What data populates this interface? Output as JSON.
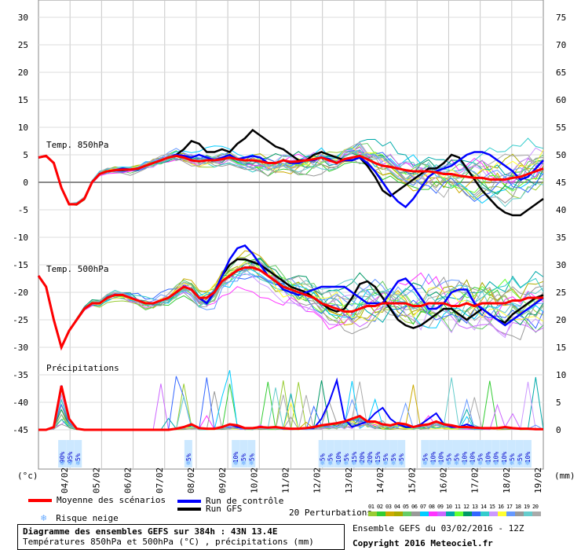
{
  "chart_data": {
    "type": "line",
    "left_axis": {
      "ticks": [
        30,
        25,
        20,
        15,
        10,
        5,
        0,
        -5,
        -10,
        -15,
        -20,
        -25,
        -30,
        -35,
        -40,
        -45
      ],
      "unit": "(°c)"
    },
    "right_axis": {
      "ticks": [
        75,
        70,
        65,
        60,
        55,
        50,
        45,
        40,
        35,
        30,
        25,
        20,
        15,
        10,
        5,
        0
      ],
      "unit": "(mm)"
    },
    "x_dates": [
      "04/02",
      "05/02",
      "06/02",
      "07/02",
      "08/02",
      "09/02",
      "10/02",
      "11/02",
      "12/02",
      "13/02",
      "14/02",
      "15/02",
      "16/02",
      "17/02",
      "18/02",
      "19/02"
    ],
    "panel_labels": {
      "t850": "Temp. 850hPa",
      "t500": "Temp. 500hPa",
      "precip": "Précipitations"
    },
    "series": {
      "t850_mean": [
        4.5,
        4.8,
        3.5,
        -1,
        -4,
        -4,
        -3,
        0,
        1.5,
        2,
        2.2,
        2.3,
        2.3,
        2.5,
        3,
        3.5,
        4,
        4.5,
        4.8,
        4.5,
        4,
        3.8,
        4,
        4,
        4.2,
        4.5,
        4.2,
        4,
        4,
        3.8,
        3.5,
        3.5,
        4,
        3.7,
        3.8,
        4,
        4.2,
        4.5,
        4,
        3.5,
        4.2,
        4.5,
        4.8,
        4.2,
        3.5,
        3,
        2.8,
        2.5,
        2.2,
        2,
        2,
        2,
        1.8,
        1.5,
        1.5,
        1.2,
        1,
        0.8,
        0.8,
        0.5,
        0.5,
        0.5,
        0.8,
        1,
        1.5,
        2,
        2.5
      ],
      "t850_control": [
        4.5,
        4.8,
        3.5,
        -1,
        -4,
        -4,
        -3,
        0,
        1.5,
        2,
        2.2,
        2.5,
        2.3,
        2.5,
        3,
        3.5,
        4,
        4.5,
        5,
        4.8,
        4.5,
        5,
        4.5,
        4,
        4.5,
        5,
        4.2,
        4.5,
        4.8,
        4.5,
        3.5,
        3.5,
        4,
        3.5,
        3.5,
        4,
        4,
        4.5,
        4.2,
        3.5,
        4,
        4,
        4.5,
        3.5,
        2,
        0,
        -2,
        -3.5,
        -4.5,
        -3,
        -1,
        1,
        2,
        2.5,
        3,
        4,
        5,
        5.5,
        5.5,
        5,
        4,
        3,
        2,
        0.5,
        1,
        2.5,
        4
      ],
      "t850_gfs": [
        4.5,
        4.8,
        3.5,
        -1,
        -4,
        -4,
        -3,
        0,
        1.5,
        2,
        2.2,
        2.2,
        2.3,
        2.5,
        3,
        3.5,
        4,
        4.5,
        5,
        6,
        7.5,
        7,
        5.5,
        5.5,
        6,
        5.5,
        7,
        8,
        9.5,
        8.5,
        7.5,
        6.5,
        6,
        5,
        4,
        4,
        5,
        5.5,
        5,
        4.5,
        4,
        4,
        4.5,
        3,
        1,
        -1.5,
        -2.5,
        -1.5,
        -0.5,
        0.5,
        1.5,
        2.5,
        2.5,
        3.5,
        5,
        4.5,
        2.5,
        0.5,
        -1.5,
        -3,
        -4.5,
        -5.5,
        -6,
        -6,
        -5,
        -4,
        -3
      ],
      "t500_mean": [
        -17,
        -19,
        -25,
        -30,
        -27,
        -25,
        -23,
        -22,
        -22,
        -21,
        -20.5,
        -20.5,
        -21,
        -21.5,
        -22,
        -22,
        -21.5,
        -21,
        -20,
        -19,
        -19.5,
        -21,
        -21,
        -20,
        -18,
        -17,
        -16,
        -15.5,
        -15.5,
        -16,
        -17,
        -18,
        -19,
        -19.5,
        -20,
        -20.5,
        -21,
        -22,
        -22.5,
        -23,
        -23.5,
        -23.5,
        -23,
        -22.5,
        -22.5,
        -22,
        -22,
        -22,
        -22,
        -22.5,
        -22.5,
        -22,
        -22,
        -22,
        -22.5,
        -22.5,
        -22,
        -22.5,
        -22,
        -22,
        -22,
        -22,
        -21.5,
        -21.5,
        -21,
        -21,
        -21
      ],
      "t500_control": [
        -17,
        -19,
        -25,
        -30,
        -27,
        -25,
        -23,
        -22,
        -22,
        -21,
        -20.5,
        -20.5,
        -21,
        -21.5,
        -22,
        -22,
        -21.5,
        -21,
        -20,
        -19,
        -19.5,
        -21,
        -22,
        -20,
        -17,
        -14,
        -12,
        -11.5,
        -13,
        -15,
        -17,
        -18,
        -19.5,
        -20,
        -20.5,
        -20,
        -19.5,
        -19,
        -19,
        -19,
        -19,
        -20,
        -21,
        -22,
        -22,
        -22,
        -20,
        -18,
        -17.5,
        -19,
        -21,
        -23,
        -23,
        -22,
        -20,
        -19.5,
        -19.5,
        -22,
        -23,
        -24,
        -25,
        -26,
        -25,
        -24,
        -23,
        -22,
        -21
      ],
      "t500_gfs": [
        -17,
        -19,
        -25,
        -30,
        -27,
        -25,
        -23,
        -22,
        -22,
        -21,
        -20.5,
        -20.5,
        -21,
        -21.5,
        -22,
        -22,
        -21.5,
        -21,
        -20,
        -19,
        -19.5,
        -21,
        -22,
        -20,
        -17,
        -15,
        -14,
        -14,
        -14.5,
        -15,
        -16,
        -17,
        -18,
        -19,
        -19.5,
        -20,
        -21,
        -22,
        -23,
        -23.5,
        -23,
        -21,
        -18.5,
        -18,
        -19,
        -21,
        -23,
        -25,
        -26,
        -26.5,
        -26,
        -25,
        -24,
        -23,
        -23,
        -24,
        -25,
        -24,
        -23,
        -24,
        -25,
        -25.5,
        -24,
        -23,
        -22,
        -21,
        -20.5
      ],
      "precip_mean_mm": [
        0,
        0,
        0.5,
        8,
        2,
        0.2,
        0,
        0,
        0,
        0,
        0,
        0,
        0,
        0,
        0,
        0,
        0,
        0,
        0.2,
        0.5,
        1,
        0.3,
        0.2,
        0.2,
        0.5,
        1,
        0.8,
        0.3,
        0.3,
        0.5,
        0.4,
        0.5,
        0.3,
        0.2,
        0.2,
        0.3,
        0.5,
        0.8,
        1,
        1.2,
        1.5,
        2,
        2.5,
        1.5,
        1.5,
        1,
        0.8,
        1.2,
        1,
        0.5,
        0.8,
        1,
        1.5,
        1,
        0.8,
        0.5,
        0.5,
        0.4,
        0.3,
        0.3,
        0.3,
        0.5,
        0.3,
        0.2,
        0.2,
        0.1,
        0.1
      ],
      "precip_control_mm": [
        0,
        0,
        0.5,
        8,
        2,
        0.2,
        0,
        0,
        0,
        0,
        0,
        0,
        0,
        0,
        0,
        0,
        0,
        0,
        0.2,
        0.5,
        1,
        0.3,
        0.2,
        0.2,
        0.5,
        1,
        0.5,
        0.3,
        0.3,
        0.5,
        0.4,
        0.5,
        0.3,
        0.2,
        0.2,
        0.3,
        0.3,
        2,
        5,
        9,
        2,
        0.5,
        1,
        1.5,
        3,
        4,
        2,
        1,
        0.5,
        0.5,
        1,
        2,
        3,
        1,
        0.5,
        0.5,
        1,
        0.5,
        0.3,
        0.3,
        0.3,
        0.5,
        0.3,
        0.2,
        0.2,
        0.1,
        0.1
      ]
    },
    "risk_labels": [
      {
        "day": 0.75,
        "text": "90%"
      },
      {
        "day": 1.0,
        "text": "95%"
      },
      {
        "day": 1.25,
        "text": "5%"
      },
      {
        "day": 4.75,
        "text": "5%"
      },
      {
        "day": 6.25,
        "text": "10%"
      },
      {
        "day": 6.5,
        "text": "5%"
      },
      {
        "day": 6.75,
        "text": "5%"
      },
      {
        "day": 9.0,
        "text": "5%"
      },
      {
        "day": 9.25,
        "text": "5%"
      },
      {
        "day": 9.5,
        "text": "10%"
      },
      {
        "day": 9.75,
        "text": "5%"
      },
      {
        "day": 10.0,
        "text": "15%"
      },
      {
        "day": 10.25,
        "text": "20%"
      },
      {
        "day": 10.5,
        "text": "20%"
      },
      {
        "day": 10.75,
        "text": "15%"
      },
      {
        "day": 11.0,
        "text": "5%"
      },
      {
        "day": 11.25,
        "text": "5%"
      },
      {
        "day": 11.5,
        "text": "5%"
      },
      {
        "day": 12.25,
        "text": "5%"
      },
      {
        "day": 12.5,
        "text": "10%"
      },
      {
        "day": 12.75,
        "text": "10%"
      },
      {
        "day": 13.0,
        "text": "5%"
      },
      {
        "day": 13.25,
        "text": "5%"
      },
      {
        "day": 13.5,
        "text": "10%"
      },
      {
        "day": 13.75,
        "text": "10%"
      },
      {
        "day": 14.0,
        "text": "5%"
      },
      {
        "day": 14.25,
        "text": "10%"
      },
      {
        "day": 14.5,
        "text": "10%"
      },
      {
        "day": 14.75,
        "text": "10%"
      },
      {
        "day": 15.0,
        "text": "5%"
      },
      {
        "day": 15.25,
        "text": "5%"
      },
      {
        "day": 15.5,
        "text": "10%"
      }
    ]
  },
  "legend": {
    "mean": "Moyenne des scénarios",
    "control": "Run de contrôle",
    "gfs": "Run GFS",
    "snow_risk": "Risque neige",
    "perturbations": "20 Perturbations",
    "colors": {
      "mean": "#ff0000",
      "control": "#0000ff",
      "gfs": "#000000",
      "snow": "#66aaff"
    }
  },
  "perturbation_numbers": [
    "01",
    "02",
    "03",
    "04",
    "05",
    "06",
    "07",
    "08",
    "09",
    "10",
    "11",
    "12",
    "13",
    "14",
    "15",
    "16",
    "17",
    "18",
    "19",
    "20"
  ],
  "perturbation_colors": [
    "#99cc33",
    "#33cc33",
    "#ccaa00",
    "#aaaa00",
    "#66cc66",
    "#999999",
    "#00ccff",
    "#ff33ff",
    "#cc66ff",
    "#00aaaa",
    "#66ff33",
    "#009966",
    "#3366ff",
    "#33cccc",
    "#cc99ff",
    "#ffff33",
    "#6699ff",
    "#999999",
    "#66cccc",
    "#aaaaaa"
  ],
  "footer": {
    "title": "Diagramme des ensembles GEFS sur 384h : 43N 13.4E",
    "subtitle": "Températures 850hPa et 500hPa (°C) , précipitations (mm)",
    "ensemble": "Ensemble GEFS du 03/02/2016 - 12Z",
    "copyright": "Copyright 2016 Meteociel.fr"
  }
}
